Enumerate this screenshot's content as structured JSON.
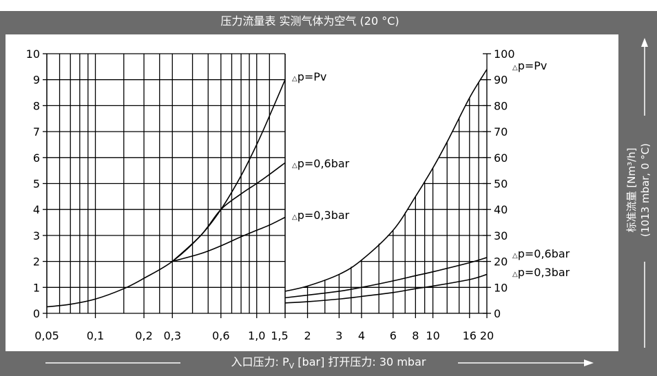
{
  "chart_title": "压力流量表   实测气体为空气 (20 °C)",
  "x_axis_label_main": "入口压力: P",
  "x_axis_label_sub": "V",
  "x_axis_label_tail": " [bar]  打开压力: 30 mbar",
  "y_axis_label_line1": "标准流量 [Nm³/h]",
  "y_axis_label_line2": "(1013 mbar, 0 °C)",
  "chart_data": [
    {
      "type": "line",
      "x_scale": "log",
      "xlim": [
        0.05,
        1.5
      ],
      "ylim": [
        0,
        10
      ],
      "x_tick_labels": [
        "0,05",
        "0,1",
        "0,2",
        "0,3",
        "0,6",
        "1,0",
        "1,5"
      ],
      "x_ticks": [
        0.05,
        0.1,
        0.2,
        0.3,
        0.6,
        1.0,
        1.5
      ],
      "y_ticks": [
        0,
        1,
        2,
        3,
        4,
        5,
        6,
        7,
        8,
        9,
        10
      ],
      "y_tick_labels": [
        "0",
        "1",
        "2",
        "3",
        "4",
        "5",
        "6",
        "7",
        "8",
        "9",
        "10"
      ],
      "series": [
        {
          "name": "Δp=Pv",
          "x": [
            0.05,
            0.07,
            0.1,
            0.15,
            0.2,
            0.3,
            0.45,
            0.6,
            0.8,
            1.0,
            1.2,
            1.5
          ],
          "y": [
            0.25,
            0.35,
            0.55,
            0.95,
            1.35,
            2.0,
            3.0,
            4.0,
            5.3,
            6.5,
            7.6,
            9.0
          ]
        },
        {
          "name": "Δp=0,6bar",
          "x": [
            0.3,
            0.45,
            0.6,
            0.8,
            1.0,
            1.2,
            1.5
          ],
          "y": [
            2.0,
            3.0,
            4.0,
            4.6,
            5.0,
            5.35,
            5.8
          ]
        },
        {
          "name": "Δp=0,3bar",
          "x": [
            0.3,
            0.45,
            0.6,
            0.8,
            1.0,
            1.2,
            1.5
          ],
          "y": [
            2.0,
            2.3,
            2.6,
            2.95,
            3.2,
            3.4,
            3.7
          ]
        }
      ],
      "curve_labels": [
        "p=Pv",
        "p=0,6bar",
        "p=0,3bar"
      ],
      "delta_symbol": "△"
    },
    {
      "type": "line",
      "x_scale": "log",
      "xlim": [
        1.5,
        20
      ],
      "ylim": [
        0,
        100
      ],
      "x_tick_labels": [
        "2",
        "3",
        "4",
        "6",
        "8",
        "10",
        "16",
        "20"
      ],
      "x_ticks": [
        2,
        3,
        4,
        6,
        8,
        10,
        16,
        20
      ],
      "y_ticks": [
        0,
        10,
        20,
        30,
        40,
        50,
        60,
        70,
        80,
        90,
        100
      ],
      "y_tick_labels": [
        "0",
        "10",
        "20",
        "30",
        "40",
        "50",
        "60",
        "70",
        "80",
        "90",
        "100"
      ],
      "series": [
        {
          "name": "Δp=Pv",
          "x": [
            1.5,
            2,
            3,
            4,
            6,
            8,
            10,
            12,
            16,
            20
          ],
          "y": [
            8.5,
            10.5,
            15,
            20.5,
            32,
            45,
            56,
            66,
            83,
            94
          ]
        },
        {
          "name": "Δp=0,6bar",
          "x": [
            1.5,
            2,
            3,
            4,
            6,
            8,
            10,
            16,
            20
          ],
          "y": [
            6.0,
            7.0,
            8.5,
            10.0,
            12.5,
            14.5,
            16,
            19.5,
            21.5
          ]
        },
        {
          "name": "Δp=0,3bar",
          "x": [
            1.5,
            2,
            3,
            4,
            6,
            8,
            10,
            16,
            20
          ],
          "y": [
            4.0,
            4.5,
            5.5,
            6.5,
            8.0,
            9.5,
            10.5,
            13,
            15
          ]
        }
      ],
      "curve_labels": [
        "p=Pv",
        "p=0,6bar",
        "p=0,3bar"
      ],
      "delta_symbol": "△"
    }
  ]
}
